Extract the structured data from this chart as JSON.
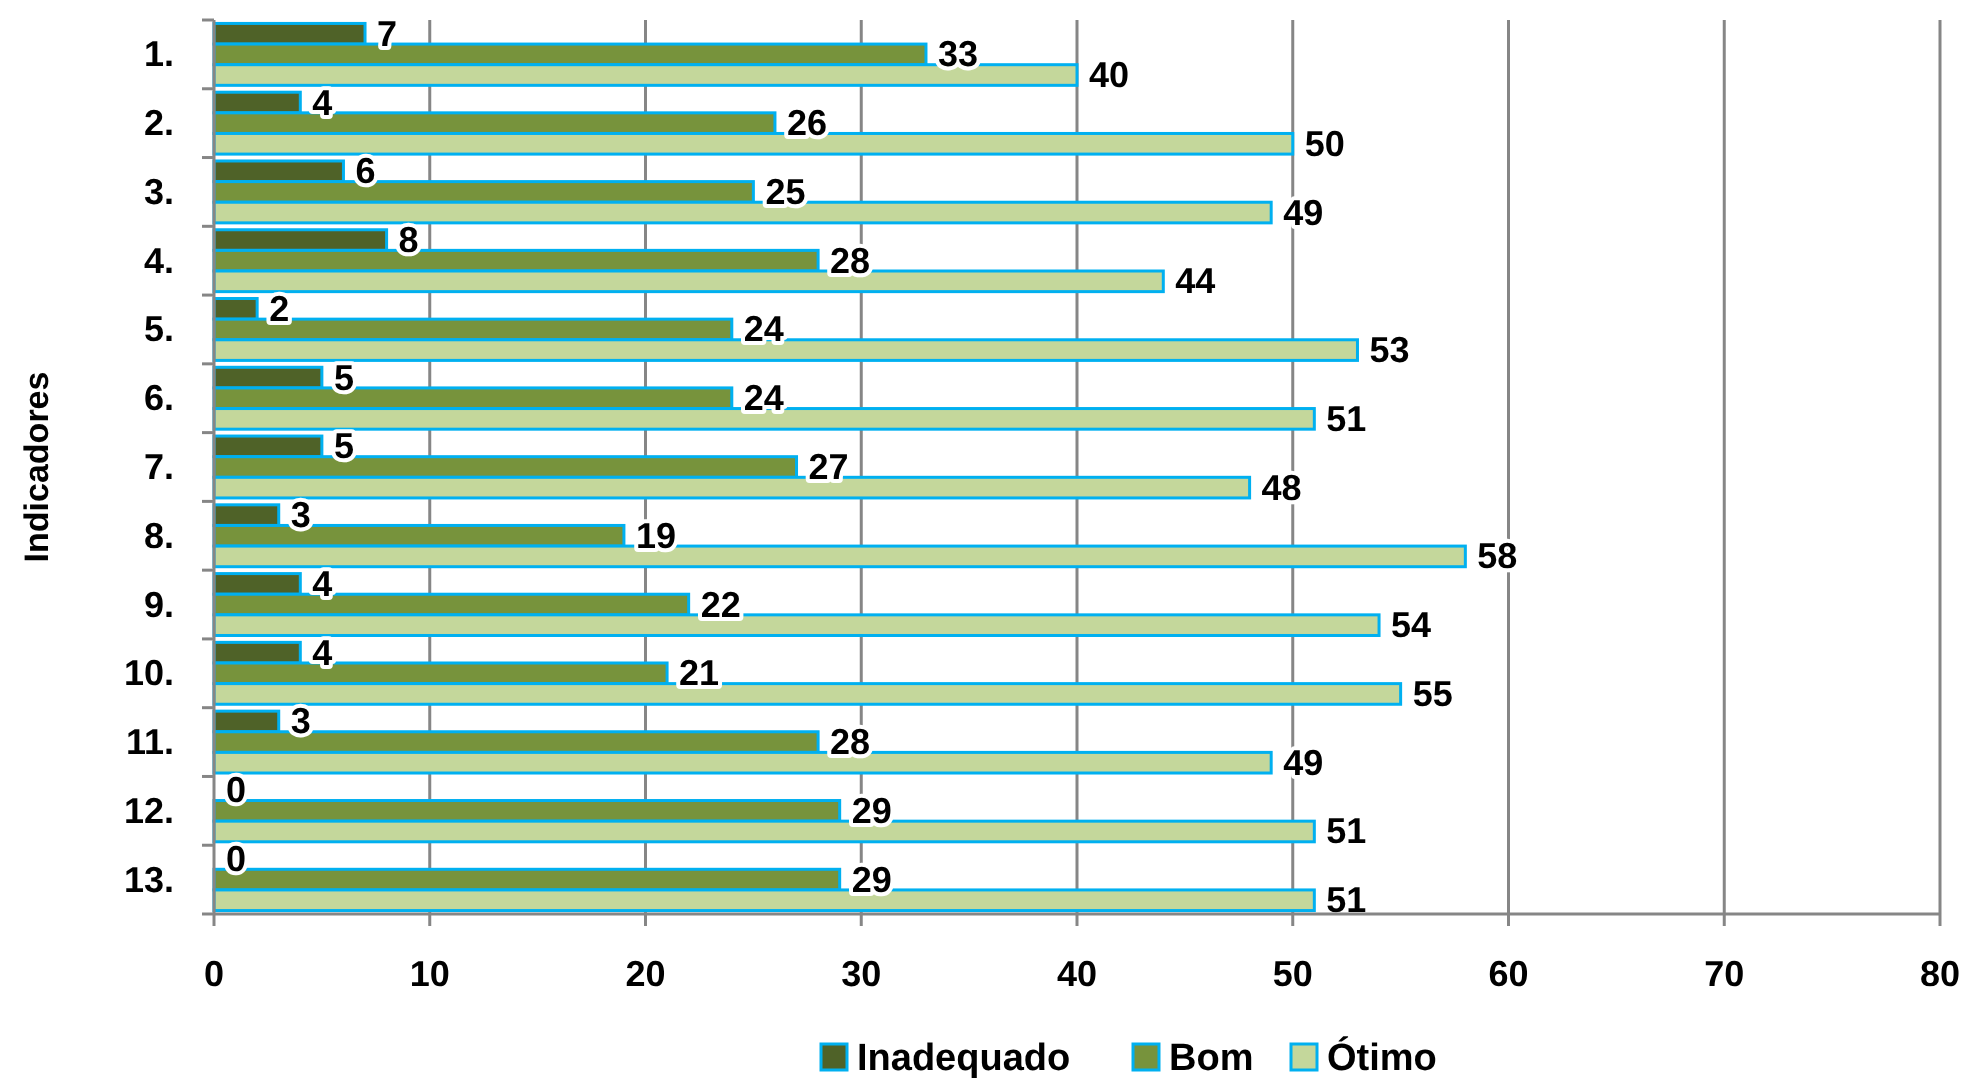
{
  "chart_data": {
    "type": "bar",
    "orientation": "horizontal",
    "ylabel": "Indicadores",
    "categories": [
      "1.",
      "2.",
      "3.",
      "4.",
      "5.",
      "6.",
      "7.",
      "8.",
      "9.",
      "10.",
      "11.",
      "12.",
      "13."
    ],
    "series": [
      {
        "name": "Inadequado",
        "color": "#4f6228",
        "values": [
          7,
          4,
          6,
          8,
          2,
          5,
          5,
          3,
          4,
          4,
          3,
          0,
          0
        ]
      },
      {
        "name": "Bom",
        "color": "#77933c",
        "values": [
          33,
          26,
          25,
          28,
          24,
          24,
          27,
          19,
          22,
          21,
          28,
          29,
          29
        ]
      },
      {
        "name": "Ótimo",
        "color": "#c4d79b",
        "values": [
          40,
          50,
          49,
          44,
          53,
          51,
          48,
          58,
          54,
          55,
          49,
          51,
          51
        ]
      }
    ],
    "xlim": [
      0,
      80
    ],
    "xticks": [
      0,
      10,
      20,
      30,
      40,
      50,
      60,
      70,
      80
    ],
    "grid": "x",
    "legend": "bottom",
    "data_labels": true
  }
}
